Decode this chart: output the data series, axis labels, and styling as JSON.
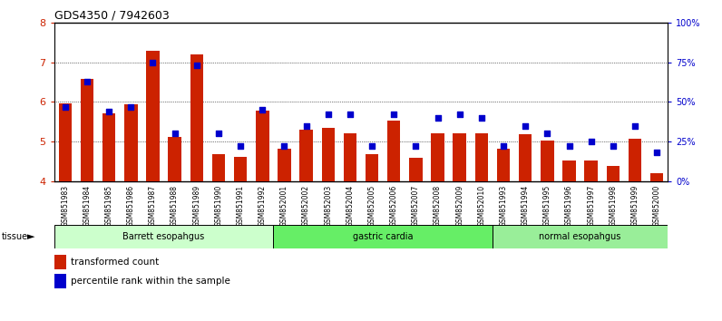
{
  "title": "GDS4350 / 7942603",
  "samples": [
    "GSM851983",
    "GSM851984",
    "GSM851985",
    "GSM851986",
    "GSM851987",
    "GSM851988",
    "GSM851989",
    "GSM851990",
    "GSM851991",
    "GSM851992",
    "GSM852001",
    "GSM852002",
    "GSM852003",
    "GSM852004",
    "GSM852005",
    "GSM852006",
    "GSM852007",
    "GSM852008",
    "GSM852009",
    "GSM852010",
    "GSM851993",
    "GSM851994",
    "GSM851995",
    "GSM851996",
    "GSM851997",
    "GSM851998",
    "GSM851999",
    "GSM852000"
  ],
  "red_bars": [
    5.97,
    6.58,
    5.72,
    5.93,
    7.28,
    5.12,
    7.2,
    4.68,
    4.62,
    5.77,
    4.82,
    5.3,
    5.35,
    5.22,
    4.68,
    5.52,
    4.6,
    5.22,
    5.22,
    5.22,
    4.82,
    5.18,
    5.02,
    4.52,
    4.52,
    4.38,
    5.08,
    4.2
  ],
  "blue_dots": [
    47,
    63,
    44,
    47,
    75,
    30,
    73,
    30,
    22,
    45,
    22,
    35,
    42,
    42,
    22,
    42,
    22,
    40,
    42,
    40,
    22,
    35,
    30,
    22,
    25,
    22,
    35,
    18
  ],
  "groups": [
    {
      "label": "Barrett esopahgus",
      "start": 0,
      "end": 10,
      "color": "#ccffcc"
    },
    {
      "label": "gastric cardia",
      "start": 10,
      "end": 20,
      "color": "#66ee66"
    },
    {
      "label": "normal esopahgus",
      "start": 20,
      "end": 28,
      "color": "#99ee99"
    }
  ],
  "ylim_left": [
    4,
    8
  ],
  "ylim_right": [
    0,
    100
  ],
  "yticks_left": [
    4,
    5,
    6,
    7,
    8
  ],
  "yticks_right": [
    0,
    25,
    50,
    75,
    100
  ],
  "bar_color": "#cc2200",
  "dot_color": "#0000cc",
  "bg_tick_color": "#d8d8d8"
}
